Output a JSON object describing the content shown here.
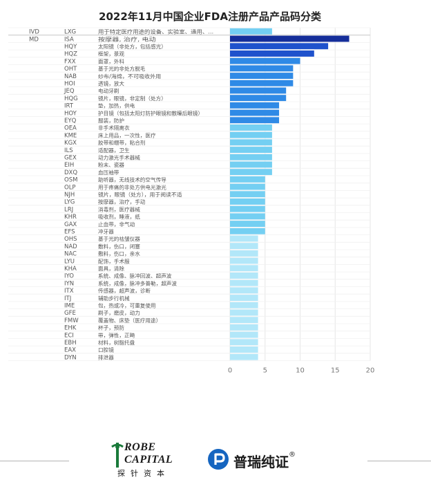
{
  "chart_data": {
    "type": "bar",
    "orientation": "horizontal",
    "title": "2022年11月中国企业FDA注册产品产品码分类",
    "xlim": [
      0,
      20
    ],
    "xticks": [
      0,
      5,
      10,
      15,
      20
    ],
    "grid": true,
    "colors": {
      "top": "#152e9a",
      "high": "#1f52cc",
      "mid": "#2f8ae6",
      "low": "#74cff2",
      "lowest": "#b2e7f9"
    },
    "rows": [
      {
        "group": "IVD",
        "code": "LXG",
        "desc": "用于特定医疗用途的设备、实验室、通用、...",
        "value": 6
      },
      {
        "group": "MD",
        "code": "ISA",
        "desc": "按摩器, 治疗, 电动",
        "value": 17
      },
      {
        "group": "",
        "code": "HQY",
        "desc": "太阳镜（非处方，包括感光）",
        "value": 14
      },
      {
        "group": "",
        "code": "HQZ",
        "desc": "框架，景观",
        "value": 12
      },
      {
        "group": "",
        "code": "FXX",
        "desc": "面罩，外科",
        "value": 10
      },
      {
        "group": "",
        "code": "OHT",
        "desc": "基于光的非处方脱毛",
        "value": 9
      },
      {
        "group": "",
        "code": "NAB",
        "desc": "纱布/海绵，不可吸收外用",
        "value": 9
      },
      {
        "group": "",
        "code": "HOI",
        "desc": "透镜，放大",
        "value": 9
      },
      {
        "group": "",
        "code": "JEQ",
        "desc": "电动牙刷",
        "value": 8
      },
      {
        "group": "",
        "code": "HQG",
        "desc": "镜片，眼镜，非定制（处方）",
        "value": 8
      },
      {
        "group": "",
        "code": "IRT",
        "desc": "垫，加热，供电",
        "value": 7
      },
      {
        "group": "",
        "code": "HOY",
        "desc": "护目镜（包括太阳灯防护眼镜和散瞳后眼镜）",
        "value": 7
      },
      {
        "group": "",
        "code": "EYQ",
        "desc": "服装，防护",
        "value": 7
      },
      {
        "group": "",
        "code": "OEA",
        "desc": "非手术隔离衣",
        "value": 6
      },
      {
        "group": "",
        "code": "KME",
        "desc": "床上用品，一次性，医疗",
        "value": 6
      },
      {
        "group": "",
        "code": "KGX",
        "desc": "胶带和绷带，粘合剂",
        "value": 6
      },
      {
        "group": "",
        "code": "ILS",
        "desc": "适配器，卫生",
        "value": 6
      },
      {
        "group": "",
        "code": "GEX",
        "desc": "动力激光手术器械",
        "value": 6
      },
      {
        "group": "",
        "code": "EIH",
        "desc": "粉末、瓷器",
        "value": 6
      },
      {
        "group": "",
        "code": "DXQ",
        "desc": "血压袖带",
        "value": 6
      },
      {
        "group": "",
        "code": "OSM",
        "desc": "助听器，无线技术的空气传导",
        "value": 5
      },
      {
        "group": "",
        "code": "OLP",
        "desc": "用于疼痛的非处方供电光激光",
        "value": 5
      },
      {
        "group": "",
        "code": "NJH",
        "desc": "镜片，眼镜（处方），用于阅读不适",
        "value": 5
      },
      {
        "group": "",
        "code": "LYG",
        "desc": "按摩器，治疗，手动",
        "value": 5
      },
      {
        "group": "",
        "code": "LRJ",
        "desc": "消毒剂，医疗器械",
        "value": 5
      },
      {
        "group": "",
        "code": "KHR",
        "desc": "吸收剂，睡液，纸",
        "value": 5
      },
      {
        "group": "",
        "code": "GAX",
        "desc": "止血带，非气动",
        "value": 5
      },
      {
        "group": "",
        "code": "EFS",
        "desc": "冲牙器",
        "value": 5
      },
      {
        "group": "",
        "code": "OHS",
        "desc": "基于光的祛皱仪器",
        "value": 4
      },
      {
        "group": "",
        "code": "NAD",
        "desc": "敷料，伤口，闭塞",
        "value": 4
      },
      {
        "group": "",
        "code": "NAC",
        "desc": "敷料，伤口，亲水",
        "value": 4
      },
      {
        "group": "",
        "code": "LYU",
        "desc": "配饰，手术服",
        "value": 4
      },
      {
        "group": "",
        "code": "KHA",
        "desc": "面具，清除",
        "value": 4
      },
      {
        "group": "",
        "code": "IYO",
        "desc": "系统、成像、脉冲回波、超声波",
        "value": 4
      },
      {
        "group": "",
        "code": "IYN",
        "desc": "系统，成像，脉冲多普勒，超声波",
        "value": 4
      },
      {
        "group": "",
        "code": "ITX",
        "desc": "传感器，超声波，诊断",
        "value": 4
      },
      {
        "group": "",
        "code": "ITJ",
        "desc": "辅助步行机械",
        "value": 4
      },
      {
        "group": "",
        "code": "IME",
        "desc": "包，热或冷，可重复使用",
        "value": 4
      },
      {
        "group": "",
        "code": "GFE",
        "desc": "刷子，磨皮，动力",
        "value": 4
      },
      {
        "group": "",
        "code": "FMW",
        "desc": "覆盖物、床垫（医疗用途）",
        "value": 4
      },
      {
        "group": "",
        "code": "EHK",
        "desc": "杯子，预防",
        "value": 4
      },
      {
        "group": "",
        "code": "ECI",
        "desc": "带，弹性，正畸",
        "value": 4
      },
      {
        "group": "",
        "code": "EBH",
        "desc": "材料，树脂托盘",
        "value": 4
      },
      {
        "group": "",
        "code": "EAX",
        "desc": "口腔镜",
        "value": 4
      },
      {
        "group": "",
        "code": "DYN",
        "desc": "排泄器",
        "value": 4
      }
    ]
  },
  "footer": {
    "robe_line1": "ROBE",
    "robe_line2": "CAPITAL",
    "robe_cn": "探针资本",
    "pr_text": "普瑞纯证",
    "pr_reg": "®"
  }
}
